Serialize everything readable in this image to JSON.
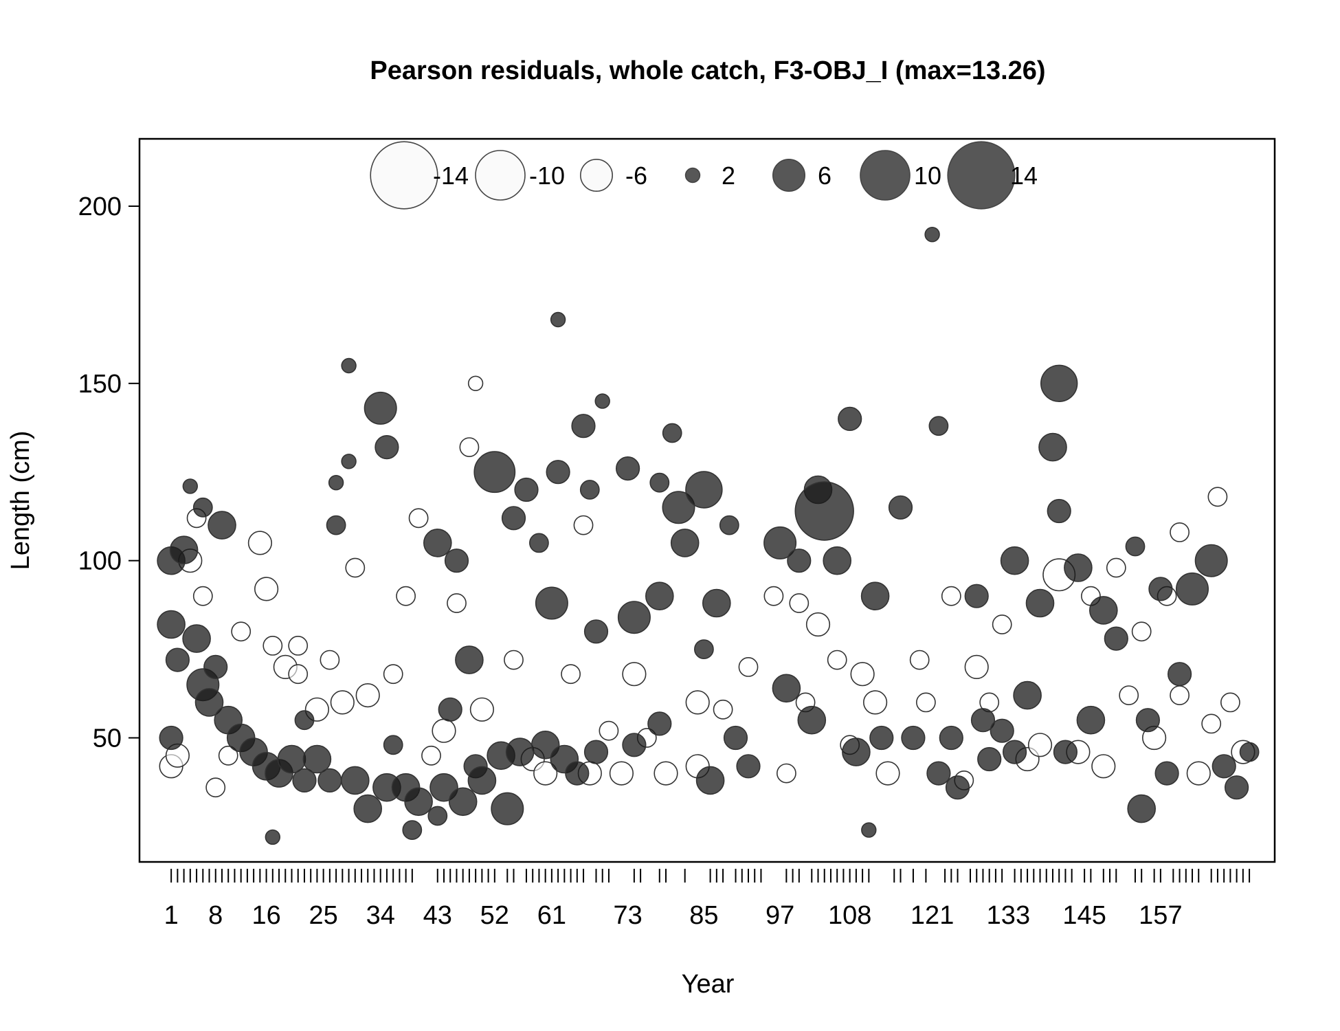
{
  "chart_data": {
    "type": "scatter",
    "subtype": "bubble",
    "title": "Pearson residuals, whole catch, F3-OBJ_I (max=13.26)",
    "xlabel": "Year",
    "ylabel": "Length (cm)",
    "xlim": [
      -4,
      175
    ],
    "ylim": [
      15,
      219
    ],
    "x_ticks": [
      1,
      2,
      3,
      4,
      5,
      6,
      7,
      8,
      9,
      10,
      11,
      12,
      13,
      14,
      15,
      16,
      17,
      18,
      19,
      20,
      21,
      22,
      23,
      24,
      25,
      26,
      27,
      28,
      29,
      30,
      31,
      32,
      33,
      34,
      35,
      36,
      37,
      38,
      39,
      43,
      44,
      45,
      46,
      47,
      48,
      49,
      50,
      51,
      52,
      54,
      55,
      57,
      58,
      59,
      60,
      61,
      62,
      63,
      64,
      65,
      66,
      68,
      69,
      70,
      74,
      75,
      78,
      79,
      82,
      86,
      87,
      88,
      90,
      91,
      92,
      93,
      94,
      98,
      99,
      100,
      102,
      103,
      104,
      105,
      106,
      107,
      108,
      109,
      110,
      111,
      115,
      116,
      118,
      120,
      123,
      124,
      125,
      127,
      128,
      129,
      130,
      131,
      132,
      134,
      135,
      136,
      137,
      138,
      139,
      140,
      141,
      142,
      143,
      145,
      146,
      148,
      149,
      150,
      153,
      154,
      156,
      157,
      159,
      160,
      161,
      162,
      163,
      165,
      166,
      167,
      168,
      169,
      170,
      171
    ],
    "x_tick_labels": [
      {
        "value": 1,
        "label": "1"
      },
      {
        "value": 8,
        "label": "8"
      },
      {
        "value": 16,
        "label": "16"
      },
      {
        "value": 25,
        "label": "25"
      },
      {
        "value": 34,
        "label": "34"
      },
      {
        "value": 43,
        "label": "43"
      },
      {
        "value": 52,
        "label": "52"
      },
      {
        "value": 61,
        "label": "61"
      },
      {
        "value": 73,
        "label": "73"
      },
      {
        "value": 85,
        "label": "85"
      },
      {
        "value": 97,
        "label": "97"
      },
      {
        "value": 108,
        "label": "108"
      },
      {
        "value": 121,
        "label": "121"
      },
      {
        "value": 133,
        "label": "133"
      },
      {
        "value": 145,
        "label": "145"
      },
      {
        "value": 157,
        "label": "157"
      }
    ],
    "y_ticks": [
      50,
      100,
      150,
      200
    ],
    "y_tick_labels": [
      "50",
      "100",
      "150",
      "200"
    ],
    "grid": false,
    "legend": {
      "placement": "top-center",
      "entries": [
        {
          "label": "-14",
          "value": -14
        },
        {
          "label": "-10",
          "value": -10
        },
        {
          "label": "-6",
          "value": -6
        },
        {
          "label": "2",
          "value": 2
        },
        {
          "label": "6",
          "value": 6
        },
        {
          "label": "10",
          "value": 10
        },
        {
          "label": "14",
          "value": 14
        }
      ]
    },
    "colors": {
      "positive_fill": "#1a1a1a",
      "negative_fill": "#ffffff",
      "stroke": "#333333"
    },
    "max_abs_residual": 13.26,
    "series": [
      {
        "name": "positive",
        "points": [
          [
            1,
            82,
            5
          ],
          [
            1,
            100,
            5
          ],
          [
            1,
            50,
            4
          ],
          [
            2,
            72,
            4
          ],
          [
            3,
            103,
            5
          ],
          [
            4,
            121,
            2
          ],
          [
            5,
            78,
            5
          ],
          [
            6,
            65,
            6
          ],
          [
            6,
            115,
            3
          ],
          [
            7,
            60,
            5
          ],
          [
            8,
            70,
            4
          ],
          [
            9,
            110,
            5
          ],
          [
            10,
            55,
            5
          ],
          [
            12,
            50,
            5
          ],
          [
            14,
            46,
            5
          ],
          [
            16,
            42,
            5
          ],
          [
            17,
            22,
            2
          ],
          [
            18,
            40,
            5
          ],
          [
            20,
            44,
            5
          ],
          [
            22,
            38,
            4
          ],
          [
            22,
            55,
            3
          ],
          [
            24,
            44,
            5
          ],
          [
            26,
            38,
            4
          ],
          [
            27,
            122,
            2
          ],
          [
            27,
            110,
            3
          ],
          [
            29,
            155,
            2
          ],
          [
            29,
            128,
            2
          ],
          [
            30,
            38,
            5
          ],
          [
            32,
            30,
            5
          ],
          [
            34,
            143,
            6
          ],
          [
            35,
            132,
            4
          ],
          [
            35,
            36,
            5
          ],
          [
            36,
            48,
            3
          ],
          [
            38,
            36,
            5
          ],
          [
            39,
            24,
            3
          ],
          [
            40,
            32,
            5
          ],
          [
            43,
            28,
            3
          ],
          [
            43,
            105,
            5
          ],
          [
            44,
            36,
            5
          ],
          [
            45,
            58,
            4
          ],
          [
            46,
            100,
            4
          ],
          [
            47,
            32,
            5
          ],
          [
            48,
            72,
            5
          ],
          [
            49,
            42,
            4
          ],
          [
            50,
            38,
            5
          ],
          [
            52,
            125,
            8
          ],
          [
            53,
            45,
            5
          ],
          [
            54,
            30,
            6
          ],
          [
            55,
            112,
            4
          ],
          [
            56,
            46,
            5
          ],
          [
            57,
            120,
            4
          ],
          [
            59,
            105,
            3
          ],
          [
            60,
            48,
            5
          ],
          [
            61,
            88,
            6
          ],
          [
            62,
            125,
            4
          ],
          [
            62,
            168,
            2
          ],
          [
            63,
            44,
            5
          ],
          [
            65,
            40,
            4
          ],
          [
            66,
            138,
            4
          ],
          [
            67,
            120,
            3
          ],
          [
            68,
            80,
            4
          ],
          [
            68,
            46,
            4
          ],
          [
            69,
            145,
            2
          ],
          [
            73,
            126,
            4
          ],
          [
            74,
            84,
            6
          ],
          [
            74,
            48,
            4
          ],
          [
            78,
            90,
            5
          ],
          [
            78,
            122,
            3
          ],
          [
            78,
            54,
            4
          ],
          [
            80,
            136,
            3
          ],
          [
            81,
            115,
            6
          ],
          [
            82,
            105,
            5
          ],
          [
            85,
            120,
            7
          ],
          [
            85,
            75,
            3
          ],
          [
            86,
            38,
            5
          ],
          [
            87,
            88,
            5
          ],
          [
            89,
            110,
            3
          ],
          [
            90,
            50,
            4
          ],
          [
            92,
            42,
            4
          ],
          [
            97,
            105,
            6
          ],
          [
            98,
            64,
            5
          ],
          [
            100,
            100,
            4
          ],
          [
            102,
            55,
            5
          ],
          [
            103,
            120,
            5
          ],
          [
            104,
            114,
            12
          ],
          [
            106,
            100,
            5
          ],
          [
            108,
            140,
            4
          ],
          [
            109,
            46,
            5
          ],
          [
            111,
            24,
            2
          ],
          [
            112,
            90,
            5
          ],
          [
            113,
            50,
            4
          ],
          [
            116,
            115,
            4
          ],
          [
            118,
            50,
            4
          ],
          [
            121,
            192,
            2
          ],
          [
            122,
            138,
            3
          ],
          [
            122,
            40,
            4
          ],
          [
            124,
            50,
            4
          ],
          [
            125,
            36,
            4
          ],
          [
            128,
            90,
            4
          ],
          [
            129,
            55,
            4
          ],
          [
            130,
            44,
            4
          ],
          [
            132,
            52,
            4
          ],
          [
            134,
            100,
            5
          ],
          [
            134,
            46,
            4
          ],
          [
            136,
            62,
            5
          ],
          [
            138,
            88,
            5
          ],
          [
            140,
            132,
            5
          ],
          [
            141,
            150,
            7
          ],
          [
            141,
            114,
            4
          ],
          [
            142,
            46,
            4
          ],
          [
            144,
            98,
            5
          ],
          [
            146,
            55,
            5
          ],
          [
            148,
            86,
            5
          ],
          [
            150,
            78,
            4
          ],
          [
            153,
            104,
            3
          ],
          [
            154,
            30,
            5
          ],
          [
            155,
            55,
            4
          ],
          [
            157,
            92,
            4
          ],
          [
            158,
            40,
            4
          ],
          [
            160,
            68,
            4
          ],
          [
            162,
            92,
            6
          ],
          [
            165,
            100,
            6
          ],
          [
            167,
            42,
            4
          ],
          [
            169,
            36,
            4
          ],
          [
            171,
            46,
            3
          ]
        ]
      },
      {
        "name": "negative",
        "points": [
          [
            1,
            42,
            4
          ],
          [
            2,
            45,
            4
          ],
          [
            4,
            100,
            4
          ],
          [
            5,
            112,
            3
          ],
          [
            6,
            90,
            3
          ],
          [
            8,
            36,
            3
          ],
          [
            10,
            45,
            3
          ],
          [
            12,
            80,
            3
          ],
          [
            15,
            105,
            4
          ],
          [
            16,
            92,
            4
          ],
          [
            17,
            76,
            3
          ],
          [
            19,
            70,
            4
          ],
          [
            21,
            76,
            3
          ],
          [
            21,
            68,
            3
          ],
          [
            24,
            58,
            4
          ],
          [
            26,
            72,
            3
          ],
          [
            28,
            60,
            4
          ],
          [
            30,
            98,
            3
          ],
          [
            32,
            62,
            4
          ],
          [
            36,
            68,
            3
          ],
          [
            38,
            90,
            3
          ],
          [
            40,
            112,
            3
          ],
          [
            42,
            45,
            3
          ],
          [
            44,
            52,
            4
          ],
          [
            46,
            88,
            3
          ],
          [
            48,
            132,
            3
          ],
          [
            49,
            150,
            2
          ],
          [
            50,
            58,
            4
          ],
          [
            55,
            72,
            3
          ],
          [
            58,
            44,
            4
          ],
          [
            60,
            40,
            4
          ],
          [
            64,
            68,
            3
          ],
          [
            66,
            110,
            3
          ],
          [
            67,
            40,
            4
          ],
          [
            70,
            52,
            3
          ],
          [
            72,
            40,
            4
          ],
          [
            74,
            68,
            4
          ],
          [
            76,
            50,
            3
          ],
          [
            79,
            40,
            4
          ],
          [
            84,
            60,
            4
          ],
          [
            84,
            42,
            4
          ],
          [
            88,
            58,
            3
          ],
          [
            92,
            70,
            3
          ],
          [
            96,
            90,
            3
          ],
          [
            98,
            40,
            3
          ],
          [
            100,
            88,
            3
          ],
          [
            101,
            60,
            3
          ],
          [
            103,
            82,
            4
          ],
          [
            106,
            72,
            3
          ],
          [
            108,
            48,
            3
          ],
          [
            110,
            68,
            4
          ],
          [
            112,
            60,
            4
          ],
          [
            114,
            40,
            4
          ],
          [
            119,
            72,
            3
          ],
          [
            120,
            60,
            3
          ],
          [
            124,
            90,
            3
          ],
          [
            126,
            38,
            3
          ],
          [
            128,
            70,
            4
          ],
          [
            130,
            60,
            3
          ],
          [
            132,
            82,
            3
          ],
          [
            136,
            44,
            4
          ],
          [
            138,
            48,
            4
          ],
          [
            141,
            96,
            6
          ],
          [
            144,
            46,
            4
          ],
          [
            146,
            90,
            3
          ],
          [
            148,
            42,
            4
          ],
          [
            150,
            98,
            3
          ],
          [
            152,
            62,
            3
          ],
          [
            154,
            80,
            3
          ],
          [
            156,
            50,
            4
          ],
          [
            158,
            90,
            3
          ],
          [
            160,
            108,
            3
          ],
          [
            160,
            62,
            3
          ],
          [
            163,
            40,
            4
          ],
          [
            165,
            54,
            3
          ],
          [
            166,
            118,
            3
          ],
          [
            168,
            60,
            3
          ],
          [
            170,
            46,
            4
          ]
        ]
      }
    ]
  }
}
